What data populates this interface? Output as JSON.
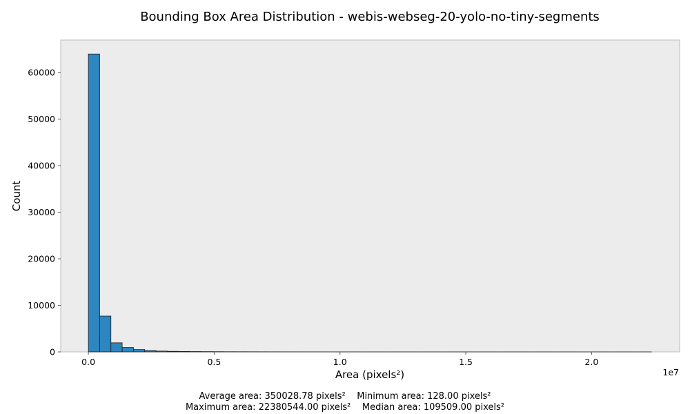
{
  "chart_data": {
    "type": "bar",
    "title": "Bounding Box Area Distribution - webis-webseg-20-yolo-no-tiny-segments",
    "xlabel": "Area (pixels²)",
    "ylabel": "Count",
    "x_offset_label": "1e7",
    "xlim": [
      -1100000,
      23500000
    ],
    "ylim": [
      0,
      67000
    ],
    "grid": false,
    "bar_color": "#2e86c1",
    "plot_bg_color": "#ececec",
    "x_ticks": [
      {
        "value": 0,
        "label": "0.0"
      },
      {
        "value": 5000000,
        "label": "0.5"
      },
      {
        "value": 10000000,
        "label": "1.0"
      },
      {
        "value": 15000000,
        "label": "1.5"
      },
      {
        "value": 20000000,
        "label": "2.0"
      }
    ],
    "y_ticks": [
      {
        "value": 0,
        "label": "0"
      },
      {
        "value": 10000,
        "label": "10000"
      },
      {
        "value": 20000,
        "label": "20000"
      },
      {
        "value": 30000,
        "label": "30000"
      },
      {
        "value": 40000,
        "label": "40000"
      },
      {
        "value": 50000,
        "label": "50000"
      },
      {
        "value": 60000,
        "label": "60000"
      }
    ],
    "bin_start": 128,
    "bin_width": 447608.3,
    "counts": [
      64000,
      7700,
      1950,
      950,
      500,
      300,
      180,
      120,
      90,
      70,
      55,
      45,
      35,
      30,
      25,
      20,
      15,
      12,
      10,
      8,
      6,
      5,
      4,
      4,
      3,
      3,
      2,
      2,
      2,
      2,
      1,
      1,
      1,
      1,
      1,
      1,
      1,
      1,
      1,
      1,
      1,
      1,
      1,
      1,
      1,
      1,
      1,
      1,
      1,
      1
    ]
  },
  "stats": {
    "line1": "Average area: 350028.78 pixels²    Minimum area: 128.00 pixels²",
    "line2": "Maximum area: 22380544.00 pixels²    Median area: 109509.00 pixels²"
  }
}
